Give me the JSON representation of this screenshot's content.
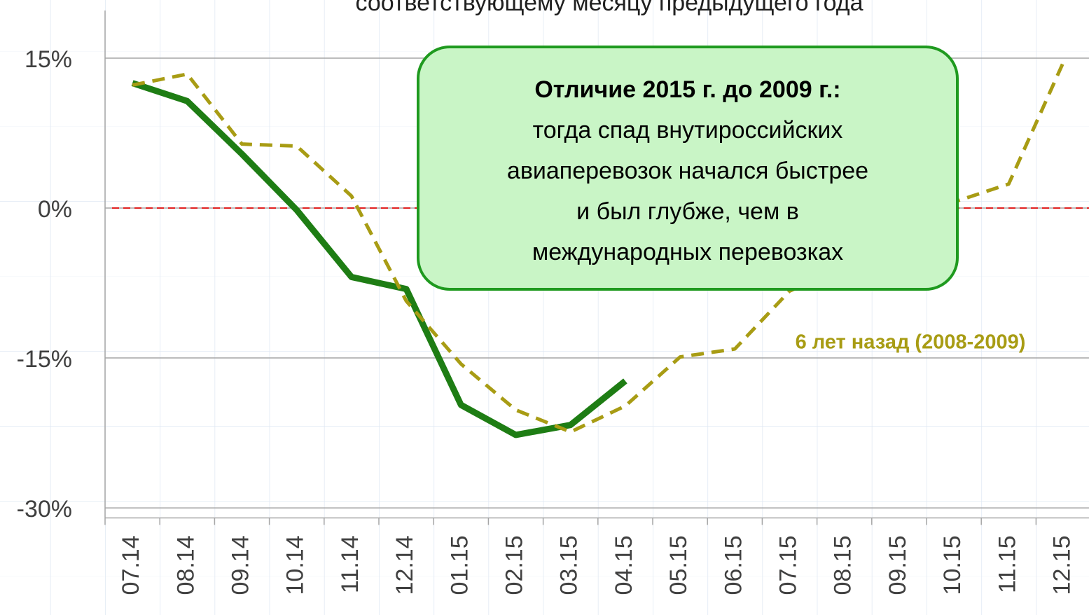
{
  "chart_data": {
    "type": "line",
    "title": "соответствующему месяцу предыдущего года",
    "categories": [
      "07.14",
      "08.14",
      "09.14",
      "10.14",
      "11.14",
      "12.14",
      "01.15",
      "02.15",
      "03.15",
      "04.15",
      "05.15",
      "06.15",
      "07.15",
      "08.15",
      "09.15",
      "10.15",
      "11.15",
      "12.15"
    ],
    "series": [
      {
        "color": "#1e7d14",
        "dashed": false,
        "values": [
          12.5,
          10.7,
          5.4,
          -0.2,
          -6.9,
          -8.1,
          -19.7,
          -22.7,
          -21.7,
          -17.3,
          null,
          null,
          null,
          null,
          null,
          null,
          null,
          null
        ]
      },
      {
        "color": "#a89c14",
        "dashed": true,
        "values": [
          12.3,
          13.4,
          6.4,
          6.2,
          1.2,
          -9.3,
          -15.6,
          -20.2,
          -22.4,
          -19.8,
          -14.9,
          -14.1,
          -8.3,
          -6.0,
          -2.5,
          0.6,
          2.4,
          14.6
        ]
      }
    ],
    "ylim": [
      -31,
      20
    ],
    "yticks": [
      {
        "value": 15,
        "label": "15%"
      },
      {
        "value": 0,
        "label": "0%"
      },
      {
        "value": -15,
        "label": "-15%"
      },
      {
        "value": -30,
        "label": "-30%"
      }
    ],
    "grid": true,
    "reference_line": {
      "value": 0,
      "color": "#e02020"
    },
    "callout": {
      "title": "Отличие 2015 г. до 2009 г.:",
      "lines": [
        "тогда спад внутироссийских",
        "авиаперевозок начался быстрее",
        "и был глубже, чем в",
        "международных перевозках"
      ]
    },
    "annotation": "6 лет назад (2008-2009)"
  }
}
